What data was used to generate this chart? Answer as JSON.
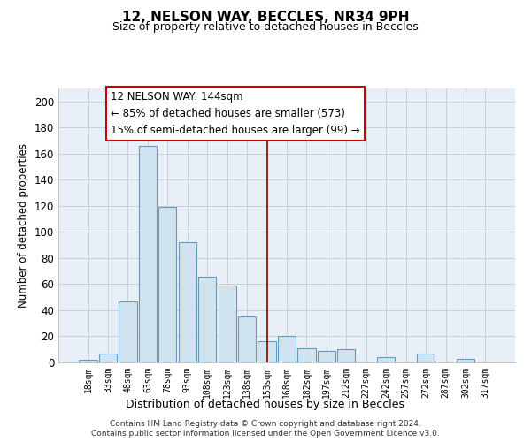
{
  "title": "12, NELSON WAY, BECCLES, NR34 9PH",
  "subtitle": "Size of property relative to detached houses in Beccles",
  "xlabel": "Distribution of detached houses by size in Beccles",
  "ylabel": "Number of detached properties",
  "bar_labels": [
    "18sqm",
    "33sqm",
    "48sqm",
    "63sqm",
    "78sqm",
    "93sqm",
    "108sqm",
    "123sqm",
    "138sqm",
    "153sqm",
    "168sqm",
    "182sqm",
    "197sqm",
    "212sqm",
    "227sqm",
    "242sqm",
    "257sqm",
    "272sqm",
    "287sqm",
    "302sqm",
    "317sqm"
  ],
  "bar_values": [
    2,
    7,
    47,
    166,
    119,
    92,
    66,
    59,
    35,
    16,
    20,
    11,
    9,
    10,
    0,
    4,
    0,
    7,
    0,
    3,
    0
  ],
  "bar_color": "#d0e4f0",
  "bar_edge_color": "#6699bb",
  "vline_x": 9,
  "vline_color": "#8b0000",
  "annotation_text_line1": "12 NELSON WAY: 144sqm",
  "annotation_text_line2": "← 85% of detached houses are smaller (573)",
  "annotation_text_line3": "15% of semi-detached houses are larger (99) →",
  "ylim": [
    0,
    210
  ],
  "yticks": [
    0,
    20,
    40,
    60,
    80,
    100,
    120,
    140,
    160,
    180,
    200
  ],
  "footnote1": "Contains HM Land Registry data © Crown copyright and database right 2024.",
  "footnote2": "Contains public sector information licensed under the Open Government Licence v3.0.",
  "background_color": "#ffffff",
  "plot_bg_color": "#e8eff7"
}
